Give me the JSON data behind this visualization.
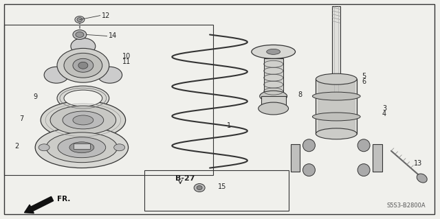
{
  "bg_color": "#f0f0ec",
  "line_color": "#333333",
  "diagram_code": "S5S3-B2800A",
  "figsize": [
    6.4,
    3.19
  ],
  "dpi": 100
}
